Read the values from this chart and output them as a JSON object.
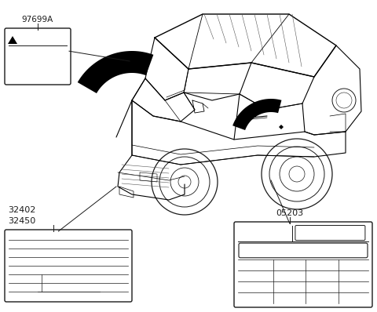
{
  "bg_color": "#ffffff",
  "line_color": "#1a1a1a",
  "labels": {
    "top_left": "97699A",
    "bottom_left_1": "32402",
    "bottom_left_2": "32450",
    "bottom_right": "05203"
  }
}
